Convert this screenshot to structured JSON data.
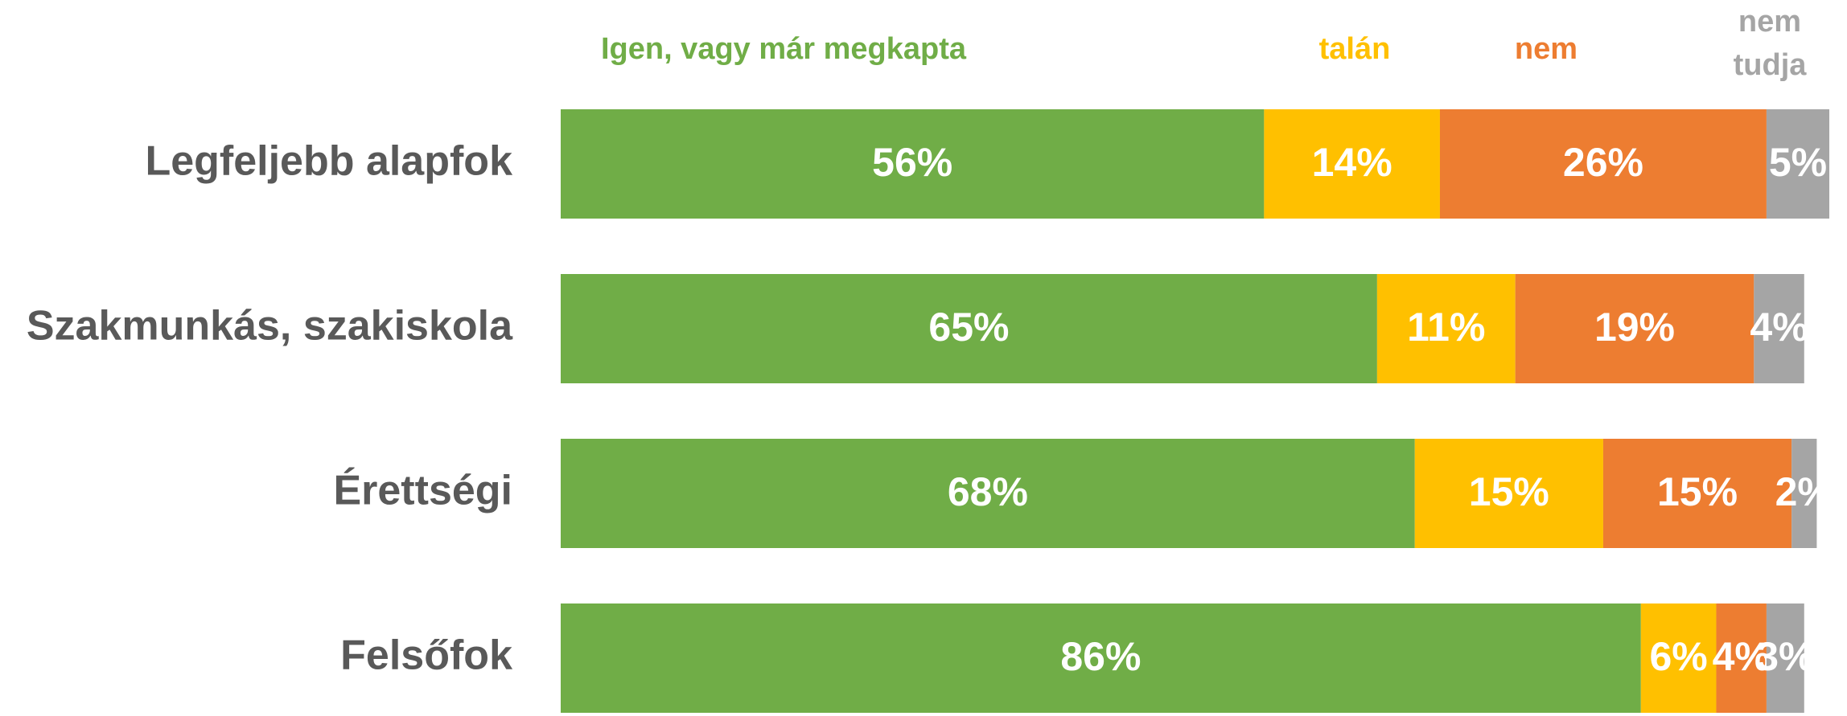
{
  "chart_data": {
    "type": "stacked-bar-horizontal",
    "categories": [
      "Legfeljebb alapfok",
      "Szakmunkás, szakiskola",
      "Érettségi",
      "Felsőfok"
    ],
    "series": [
      {
        "name": "Igen, vagy már megkapta",
        "color": "#70ad47",
        "values": [
          56,
          65,
          68,
          86
        ],
        "value_labels": [
          "56%",
          "65%",
          "68%",
          "86%"
        ]
      },
      {
        "name": "talán",
        "color": "#ffc000",
        "values": [
          14,
          11,
          15,
          6
        ],
        "value_labels": [
          "14%",
          "11%",
          "15%",
          "6%"
        ]
      },
      {
        "name": "nem",
        "color": "#ed7d31",
        "values": [
          26,
          19,
          15,
          4
        ],
        "value_labels": [
          "26%",
          "19%",
          "15%",
          "4%"
        ]
      },
      {
        "name": "nem tudja",
        "color": "#a5a5a5",
        "values": [
          5,
          4,
          2,
          3
        ],
        "value_labels": [
          "5%",
          "4%",
          "2%",
          "3%"
        ]
      }
    ],
    "xlim": [
      0,
      101
    ]
  }
}
